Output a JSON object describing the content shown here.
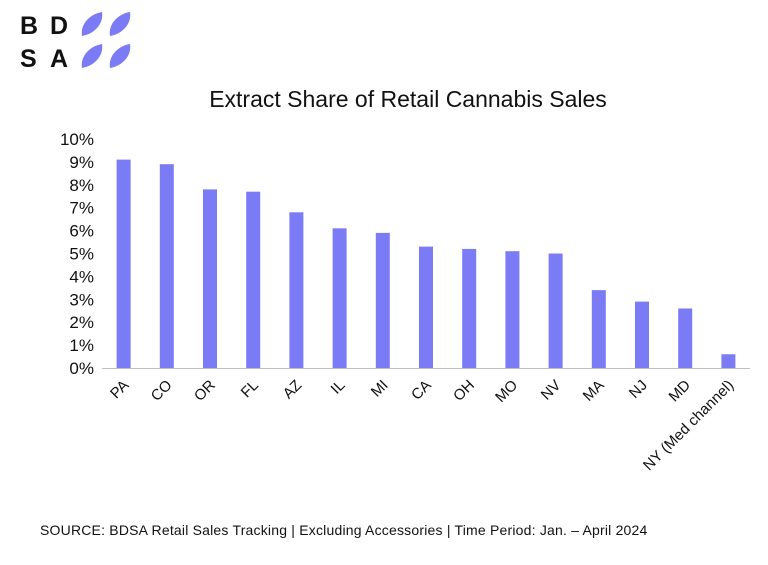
{
  "logo": {
    "text": "BDSA",
    "letters_top": [
      "B",
      "D"
    ],
    "letters_bottom": [
      "S",
      "A"
    ],
    "accent": "#7b7bf5"
  },
  "source": "SOURCE: BDSA Retail Sales Tracking | Excluding Accessories | Time Period: Jan. – April 2024",
  "chart_data": {
    "type": "bar",
    "title": "Extract Share of Retail Cannabis Sales",
    "xlabel": "",
    "ylabel": "",
    "categories": [
      "PA",
      "CO",
      "OR",
      "FL",
      "AZ",
      "IL",
      "MI",
      "CA",
      "OH",
      "MO",
      "NV",
      "MA",
      "NJ",
      "MD",
      "NY (Med channel)"
    ],
    "values": [
      9.1,
      8.9,
      7.8,
      7.7,
      6.8,
      6.1,
      5.9,
      5.3,
      5.2,
      5.1,
      5.0,
      3.4,
      2.9,
      2.6,
      0.6
    ],
    "ylim": [
      0,
      10
    ],
    "yticks": [
      "0%",
      "1%",
      "2%",
      "3%",
      "4%",
      "5%",
      "6%",
      "7%",
      "8%",
      "9%",
      "10%"
    ],
    "grid": false,
    "legend": "none",
    "bar_color": "#7b7bf5"
  }
}
